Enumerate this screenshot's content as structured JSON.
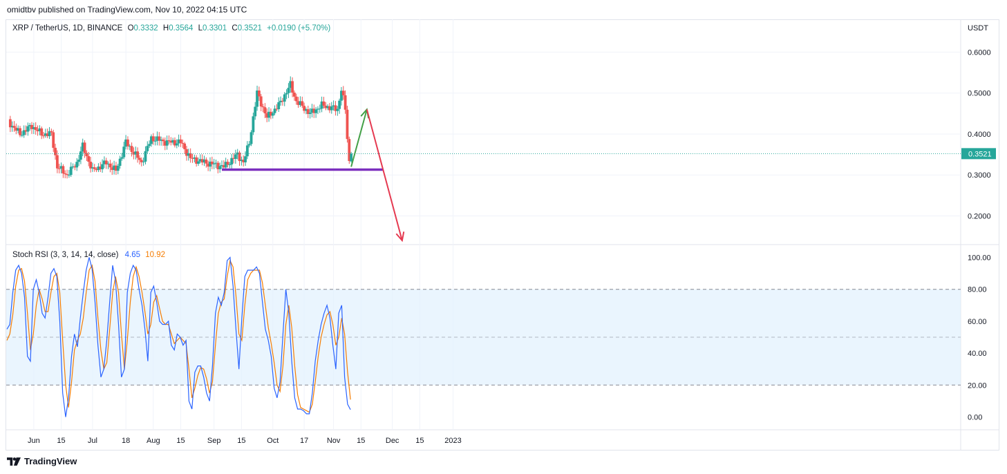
{
  "publisher_line": "omidtbv published on TradingView.com, Nov 10, 2022 04:15 UTC",
  "symbol": {
    "name": "XRP / TetherUS, 1D, BINANCE",
    "open_label": "O",
    "open": "0.3332",
    "high_label": "H",
    "high": "0.3564",
    "low_label": "L",
    "low": "0.3301",
    "close_label": "C",
    "close": "0.3521",
    "change": "+0.0190 (+5.70%)"
  },
  "price_axis": {
    "currency": "USDT",
    "ticks": [
      "0.6000",
      "0.5000",
      "0.4000",
      "0.3000",
      "0.2000"
    ],
    "current_price": "0.3521",
    "range": [
      0.13,
      0.68
    ]
  },
  "rsi_legend": {
    "label": "Stoch RSI (3, 3, 14, 14, close)",
    "k_value": "4.65",
    "d_value": "10.92"
  },
  "rsi_axis": {
    "ticks": [
      "100.00",
      "80.00",
      "60.00",
      "40.00",
      "20.00",
      "0.00"
    ],
    "range": [
      -8,
      108
    ]
  },
  "time_axis": [
    "Jun",
    "15",
    "Jul",
    "18",
    "Aug",
    "15",
    "Sep",
    "15",
    "Oct",
    "17",
    "Nov",
    "15",
    "Dec",
    "15",
    "2023"
  ],
  "colors": {
    "up": "#26a69a",
    "down": "#ef5350",
    "stoch_k": "#2962ff",
    "stoch_d": "#f57c00",
    "support_line": "#7b2fbe",
    "arrow_up": "#43a047",
    "arrow_down": "#e53950",
    "band_fill": "#e3f2fd"
  },
  "chart_data": [
    {
      "type": "candlestick",
      "title": "XRP / TetherUS, 1D, BINANCE",
      "ylabel": "USDT",
      "ylim": [
        0.13,
        0.68
      ],
      "x_start": "2022-05-19",
      "x_end": "2022-11-10",
      "anchors": [
        {
          "date": "2022-05-19",
          "close": 0.43
        },
        {
          "date": "2022-05-25",
          "close": 0.4
        },
        {
          "date": "2022-05-31",
          "close": 0.42
        },
        {
          "date": "2022-06-05",
          "close": 0.4
        },
        {
          "date": "2022-06-10",
          "close": 0.4
        },
        {
          "date": "2022-06-13",
          "close": 0.32
        },
        {
          "date": "2022-06-18",
          "close": 0.3
        },
        {
          "date": "2022-06-23",
          "close": 0.33
        },
        {
          "date": "2022-06-26",
          "close": 0.37
        },
        {
          "date": "2022-07-01",
          "close": 0.31
        },
        {
          "date": "2022-07-08",
          "close": 0.33
        },
        {
          "date": "2022-07-13",
          "close": 0.31
        },
        {
          "date": "2022-07-18",
          "close": 0.38
        },
        {
          "date": "2022-07-26",
          "close": 0.33
        },
        {
          "date": "2022-07-31",
          "close": 0.39
        },
        {
          "date": "2022-08-08",
          "close": 0.38
        },
        {
          "date": "2022-08-15",
          "close": 0.38
        },
        {
          "date": "2022-08-20",
          "close": 0.34
        },
        {
          "date": "2022-08-28",
          "close": 0.33
        },
        {
          "date": "2022-09-06",
          "close": 0.32
        },
        {
          "date": "2022-09-13",
          "close": 0.35
        },
        {
          "date": "2022-09-16",
          "close": 0.33
        },
        {
          "date": "2022-09-19",
          "close": 0.38
        },
        {
          "date": "2022-09-23",
          "close": 0.5
        },
        {
          "date": "2022-09-28",
          "close": 0.44
        },
        {
          "date": "2022-10-04",
          "close": 0.47
        },
        {
          "date": "2022-10-10",
          "close": 0.52
        },
        {
          "date": "2022-10-13",
          "close": 0.48
        },
        {
          "date": "2022-10-20",
          "close": 0.45
        },
        {
          "date": "2022-10-26",
          "close": 0.47
        },
        {
          "date": "2022-11-03",
          "close": 0.46
        },
        {
          "date": "2022-11-05",
          "close": 0.51
        },
        {
          "date": "2022-11-07",
          "close": 0.46
        },
        {
          "date": "2022-11-08",
          "close": 0.39
        },
        {
          "date": "2022-11-09",
          "close": 0.333
        },
        {
          "date": "2022-11-10",
          "close": 0.3521
        }
      ],
      "support_level": 0.313,
      "projection": [
        {
          "date": "2022-11-10",
          "price": 0.32
        },
        {
          "date": "2022-11-18",
          "price": 0.46
        },
        {
          "date": "2022-12-06",
          "price": 0.14
        }
      ]
    },
    {
      "type": "line",
      "title": "Stoch RSI (3, 3, 14, 14, close)",
      "ylim": [
        -8,
        108
      ],
      "band": [
        20,
        80
      ],
      "midline": 50,
      "series": [
        {
          "name": "K",
          "values": [
            55,
            58,
            78,
            92,
            95,
            90,
            75,
            38,
            35,
            80,
            86,
            78,
            65,
            62,
            75,
            90,
            93,
            88,
            60,
            15,
            0,
            12,
            38,
            52,
            44,
            62,
            78,
            92,
            100,
            93,
            72,
            45,
            25,
            30,
            48,
            72,
            95,
            85,
            58,
            25,
            30,
            78,
            90,
            95,
            92,
            80,
            70,
            55,
            35,
            78,
            82,
            72,
            60,
            58,
            58,
            60,
            45,
            42,
            52,
            50,
            45,
            48,
            10,
            5,
            28,
            32,
            32,
            25,
            15,
            10,
            32,
            65,
            75,
            70,
            78,
            98,
            100,
            82,
            55,
            30,
            62,
            88,
            92,
            92,
            92,
            94,
            90,
            72,
            55,
            48,
            38,
            18,
            12,
            22,
            52,
            80,
            65,
            35,
            12,
            5,
            5,
            4,
            2,
            2,
            15,
            35,
            48,
            58,
            65,
            70,
            62,
            45,
            30,
            65,
            70,
            25,
            8,
            4.65
          ]
        },
        {
          "name": "D",
          "values": [
            48,
            52,
            64,
            82,
            92,
            93,
            85,
            65,
            42,
            52,
            70,
            80,
            74,
            66,
            66,
            78,
            88,
            90,
            78,
            48,
            20,
            6,
            22,
            42,
            48,
            52,
            62,
            78,
            92,
            95,
            85,
            62,
            42,
            30,
            34,
            55,
            78,
            88,
            78,
            52,
            30,
            48,
            72,
            88,
            94,
            88,
            78,
            66,
            52,
            58,
            72,
            76,
            68,
            60,
            58,
            58,
            52,
            46,
            48,
            50,
            48,
            46,
            30,
            12,
            18,
            26,
            31,
            30,
            24,
            15,
            22,
            45,
            65,
            72,
            74,
            88,
            98,
            94,
            76,
            52,
            48,
            70,
            86,
            90,
            92,
            92,
            92,
            84,
            70,
            56,
            46,
            34,
            20,
            16,
            32,
            58,
            70,
            56,
            32,
            14,
            6,
            5,
            4,
            3,
            8,
            22,
            38,
            50,
            58,
            64,
            66,
            58,
            45,
            50,
            62,
            52,
            28,
            10.92
          ]
        }
      ]
    }
  ]
}
